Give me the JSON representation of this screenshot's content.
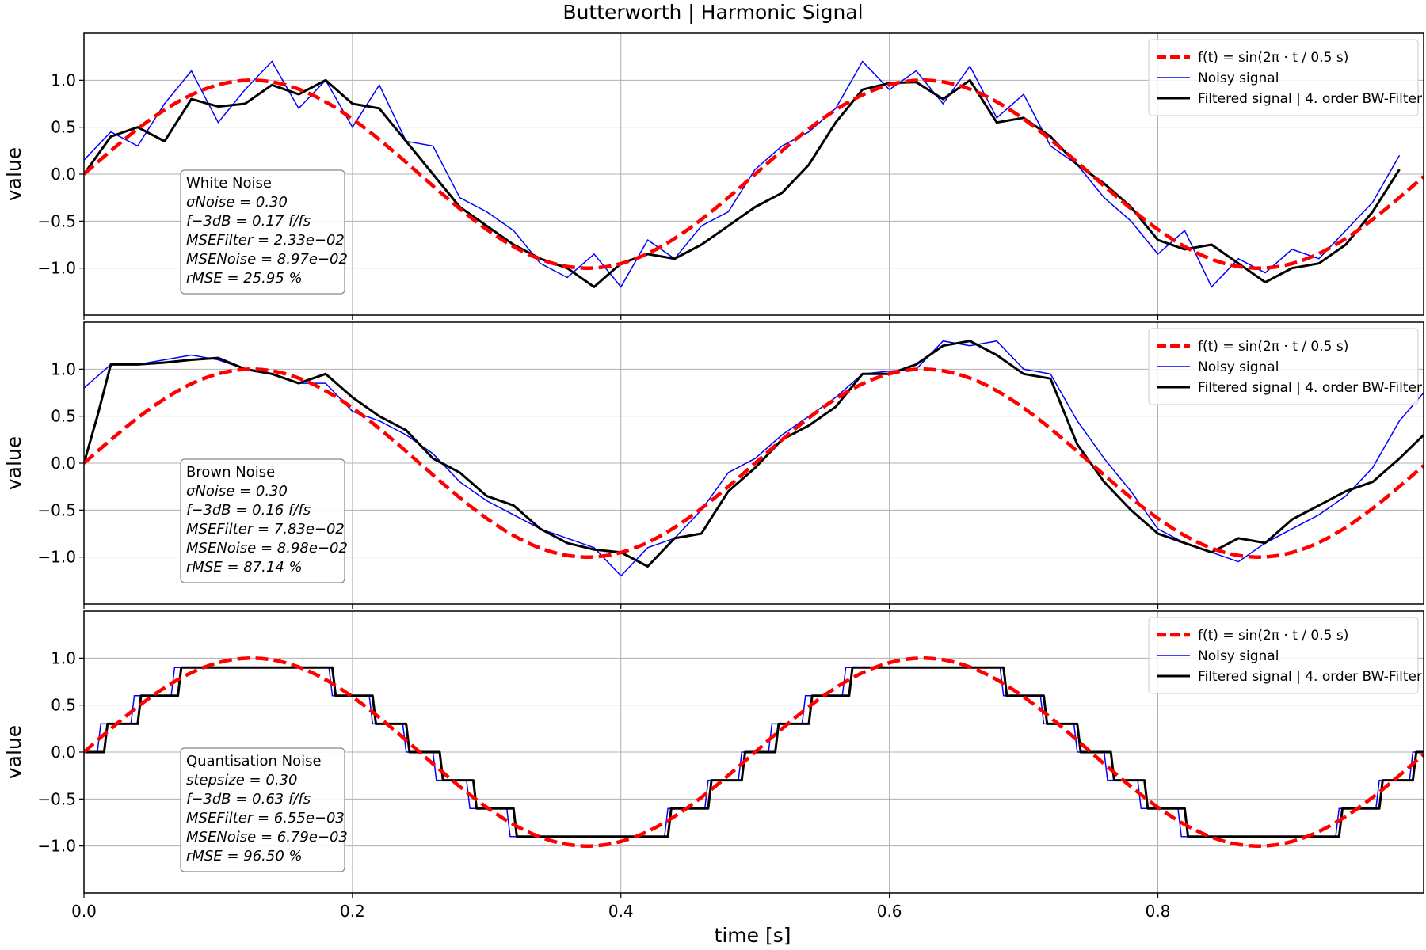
{
  "figure": {
    "title": "Butterworth | Harmonic Signal",
    "xlabel": "time [s]"
  },
  "colors": {
    "reference": "#ff0000",
    "noisy": "#0000ff",
    "filtered": "#000000",
    "grid": "#b0b0b0"
  },
  "legend": {
    "reference_label": "f(t) = sin(2π · t / 0.5 s)",
    "noisy_label": "Noisy signal",
    "filtered_label": "Filtered signal | 4. order BW-Filter",
    "placement": "top-right"
  },
  "chart_data": [
    {
      "type": "line",
      "panel": "white",
      "ylabel": "value",
      "xlim": [
        0.0,
        0.998
      ],
      "ylim": [
        -1.5,
        1.5
      ],
      "xticks": [
        0.0,
        0.2,
        0.4,
        0.6,
        0.8
      ],
      "yticks": [
        -1.0,
        -0.5,
        0.0,
        0.5,
        1.0
      ],
      "grid": true,
      "reference": {
        "function": "sin(2*pi*t/0.5)",
        "period_s": 0.5,
        "amplitude": 1.0
      },
      "noisy": {
        "x": [
          0.0,
          0.02,
          0.04,
          0.06,
          0.08,
          0.1,
          0.12,
          0.14,
          0.16,
          0.18,
          0.2,
          0.22,
          0.24,
          0.26,
          0.28,
          0.3,
          0.32,
          0.34,
          0.36,
          0.38,
          0.4,
          0.42,
          0.44,
          0.46,
          0.48,
          0.5,
          0.52,
          0.54,
          0.56,
          0.58,
          0.6,
          0.62,
          0.64,
          0.66,
          0.68,
          0.7,
          0.72,
          0.74,
          0.76,
          0.78,
          0.8,
          0.82,
          0.84,
          0.86,
          0.88,
          0.9,
          0.92,
          0.94,
          0.96,
          0.98
        ],
        "y": [
          0.15,
          0.45,
          0.3,
          0.75,
          1.1,
          0.55,
          0.9,
          1.2,
          0.7,
          1.0,
          0.5,
          0.95,
          0.35,
          0.3,
          -0.25,
          -0.4,
          -0.6,
          -0.95,
          -1.1,
          -0.85,
          -1.2,
          -0.7,
          -0.9,
          -0.55,
          -0.4,
          0.05,
          0.3,
          0.45,
          0.7,
          1.2,
          0.9,
          1.1,
          0.75,
          1.15,
          0.6,
          0.85,
          0.3,
          0.1,
          -0.25,
          -0.5,
          -0.85,
          -0.6,
          -1.2,
          -0.9,
          -1.05,
          -0.8,
          -0.9,
          -0.6,
          -0.3,
          0.2
        ]
      },
      "filtered": {
        "x": [
          0.0,
          0.02,
          0.04,
          0.06,
          0.08,
          0.1,
          0.12,
          0.14,
          0.16,
          0.18,
          0.2,
          0.22,
          0.24,
          0.26,
          0.28,
          0.3,
          0.32,
          0.34,
          0.36,
          0.38,
          0.4,
          0.42,
          0.44,
          0.46,
          0.48,
          0.5,
          0.52,
          0.54,
          0.56,
          0.58,
          0.6,
          0.62,
          0.64,
          0.66,
          0.68,
          0.7,
          0.72,
          0.74,
          0.76,
          0.78,
          0.8,
          0.82,
          0.84,
          0.86,
          0.88,
          0.9,
          0.92,
          0.94,
          0.96,
          0.98
        ],
        "y": [
          0.0,
          0.4,
          0.5,
          0.35,
          0.8,
          0.72,
          0.75,
          0.95,
          0.85,
          1.0,
          0.75,
          0.7,
          0.35,
          0.0,
          -0.35,
          -0.55,
          -0.75,
          -0.9,
          -1.0,
          -1.2,
          -0.95,
          -0.85,
          -0.9,
          -0.75,
          -0.55,
          -0.35,
          -0.2,
          0.1,
          0.55,
          0.9,
          0.97,
          0.98,
          0.8,
          1.0,
          0.55,
          0.6,
          0.4,
          0.1,
          -0.1,
          -0.35,
          -0.7,
          -0.8,
          -0.75,
          -0.95,
          -1.15,
          -1.0,
          -0.95,
          -0.75,
          -0.4,
          0.05
        ]
      },
      "info": {
        "name": "White Noise",
        "param_label": "σNoise = 0.30",
        "cutoff_label": "f−3dB = 0.17 f/fs",
        "mse_filter_label": "MSEFilter = 2.33e−02",
        "mse_noise_label": "MSENoise = 8.97e−02",
        "ratio_label": "rMSE = 25.95 %"
      }
    },
    {
      "type": "line",
      "panel": "brown",
      "ylabel": "value",
      "xlim": [
        0.0,
        0.998
      ],
      "ylim": [
        -1.5,
        1.5
      ],
      "xticks": [
        0.0,
        0.2,
        0.4,
        0.6,
        0.8
      ],
      "yticks": [
        -1.0,
        -0.5,
        0.0,
        0.5,
        1.0
      ],
      "grid": true,
      "reference": {
        "function": "sin(2*pi*t/0.5)",
        "period_s": 0.5,
        "amplitude": 1.0
      },
      "noisy": {
        "x": [
          0.0,
          0.02,
          0.04,
          0.06,
          0.08,
          0.1,
          0.12,
          0.14,
          0.16,
          0.18,
          0.2,
          0.22,
          0.24,
          0.26,
          0.28,
          0.3,
          0.32,
          0.34,
          0.36,
          0.38,
          0.4,
          0.42,
          0.44,
          0.46,
          0.48,
          0.5,
          0.52,
          0.54,
          0.56,
          0.58,
          0.6,
          0.62,
          0.64,
          0.66,
          0.68,
          0.7,
          0.72,
          0.74,
          0.76,
          0.78,
          0.8,
          0.82,
          0.84,
          0.86,
          0.88,
          0.9,
          0.92,
          0.94,
          0.96,
          0.98,
          0.998
        ],
        "y": [
          0.8,
          1.05,
          1.05,
          1.1,
          1.15,
          1.1,
          1.0,
          0.95,
          0.85,
          0.85,
          0.55,
          0.45,
          0.3,
          0.1,
          -0.2,
          -0.4,
          -0.55,
          -0.7,
          -0.8,
          -0.9,
          -1.2,
          -0.9,
          -0.8,
          -0.5,
          -0.1,
          0.05,
          0.3,
          0.5,
          0.7,
          0.95,
          0.98,
          1.0,
          1.3,
          1.25,
          1.3,
          1.0,
          0.95,
          0.45,
          0.05,
          -0.3,
          -0.7,
          -0.85,
          -0.95,
          -1.05,
          -0.85,
          -0.7,
          -0.55,
          -0.35,
          -0.05,
          0.45,
          0.75
        ]
      },
      "filtered": {
        "x": [
          0.0,
          0.01,
          0.02,
          0.04,
          0.06,
          0.08,
          0.1,
          0.12,
          0.14,
          0.16,
          0.18,
          0.2,
          0.22,
          0.24,
          0.26,
          0.28,
          0.3,
          0.32,
          0.34,
          0.36,
          0.38,
          0.4,
          0.42,
          0.44,
          0.46,
          0.48,
          0.5,
          0.52,
          0.54,
          0.56,
          0.58,
          0.6,
          0.62,
          0.64,
          0.66,
          0.68,
          0.7,
          0.72,
          0.74,
          0.76,
          0.78,
          0.8,
          0.82,
          0.84,
          0.86,
          0.88,
          0.9,
          0.92,
          0.94,
          0.96,
          0.98,
          0.998
        ],
        "y": [
          0.0,
          0.5,
          1.05,
          1.05,
          1.07,
          1.1,
          1.12,
          1.0,
          0.95,
          0.85,
          0.95,
          0.7,
          0.5,
          0.35,
          0.05,
          -0.1,
          -0.35,
          -0.45,
          -0.7,
          -0.85,
          -0.92,
          -0.95,
          -1.1,
          -0.8,
          -0.75,
          -0.3,
          -0.05,
          0.25,
          0.4,
          0.6,
          0.95,
          0.95,
          1.05,
          1.25,
          1.3,
          1.15,
          0.95,
          0.9,
          0.2,
          -0.2,
          -0.5,
          -0.75,
          -0.85,
          -0.95,
          -0.8,
          -0.85,
          -0.6,
          -0.45,
          -0.3,
          -0.2,
          0.05,
          0.3
        ]
      },
      "info": {
        "name": "Brown Noise",
        "param_label": "σNoise = 0.30",
        "cutoff_label": "f−3dB = 0.16 f/fs",
        "mse_filter_label": "MSEFilter = 7.83e−02",
        "mse_noise_label": "MSENoise = 8.98e−02",
        "ratio_label": "rMSE = 87.14 %"
      }
    },
    {
      "type": "line",
      "panel": "quantisation",
      "ylabel": "value",
      "xlim": [
        0.0,
        0.998
      ],
      "ylim": [
        -1.5,
        1.5
      ],
      "xticks": [
        0.0,
        0.2,
        0.4,
        0.6,
        0.8
      ],
      "yticks": [
        -1.0,
        -0.5,
        0.0,
        0.5,
        1.0
      ],
      "grid": true,
      "reference": {
        "function": "sin(2*pi*t/0.5)",
        "period_s": 0.5,
        "amplitude": 1.0
      },
      "noisy": {
        "quantised": true,
        "stepsize": 0.3
      },
      "filtered": {
        "quantised": true,
        "stepsize": 0.3
      },
      "info": {
        "name": "Quantisation Noise",
        "param_label": "stepsize = 0.30",
        "cutoff_label": "f−3dB = 0.63 f/fs",
        "mse_filter_label": "MSEFilter = 6.55e−03",
        "mse_noise_label": "MSENoise = 6.79e−03",
        "ratio_label": "rMSE = 96.50 %"
      }
    }
  ]
}
